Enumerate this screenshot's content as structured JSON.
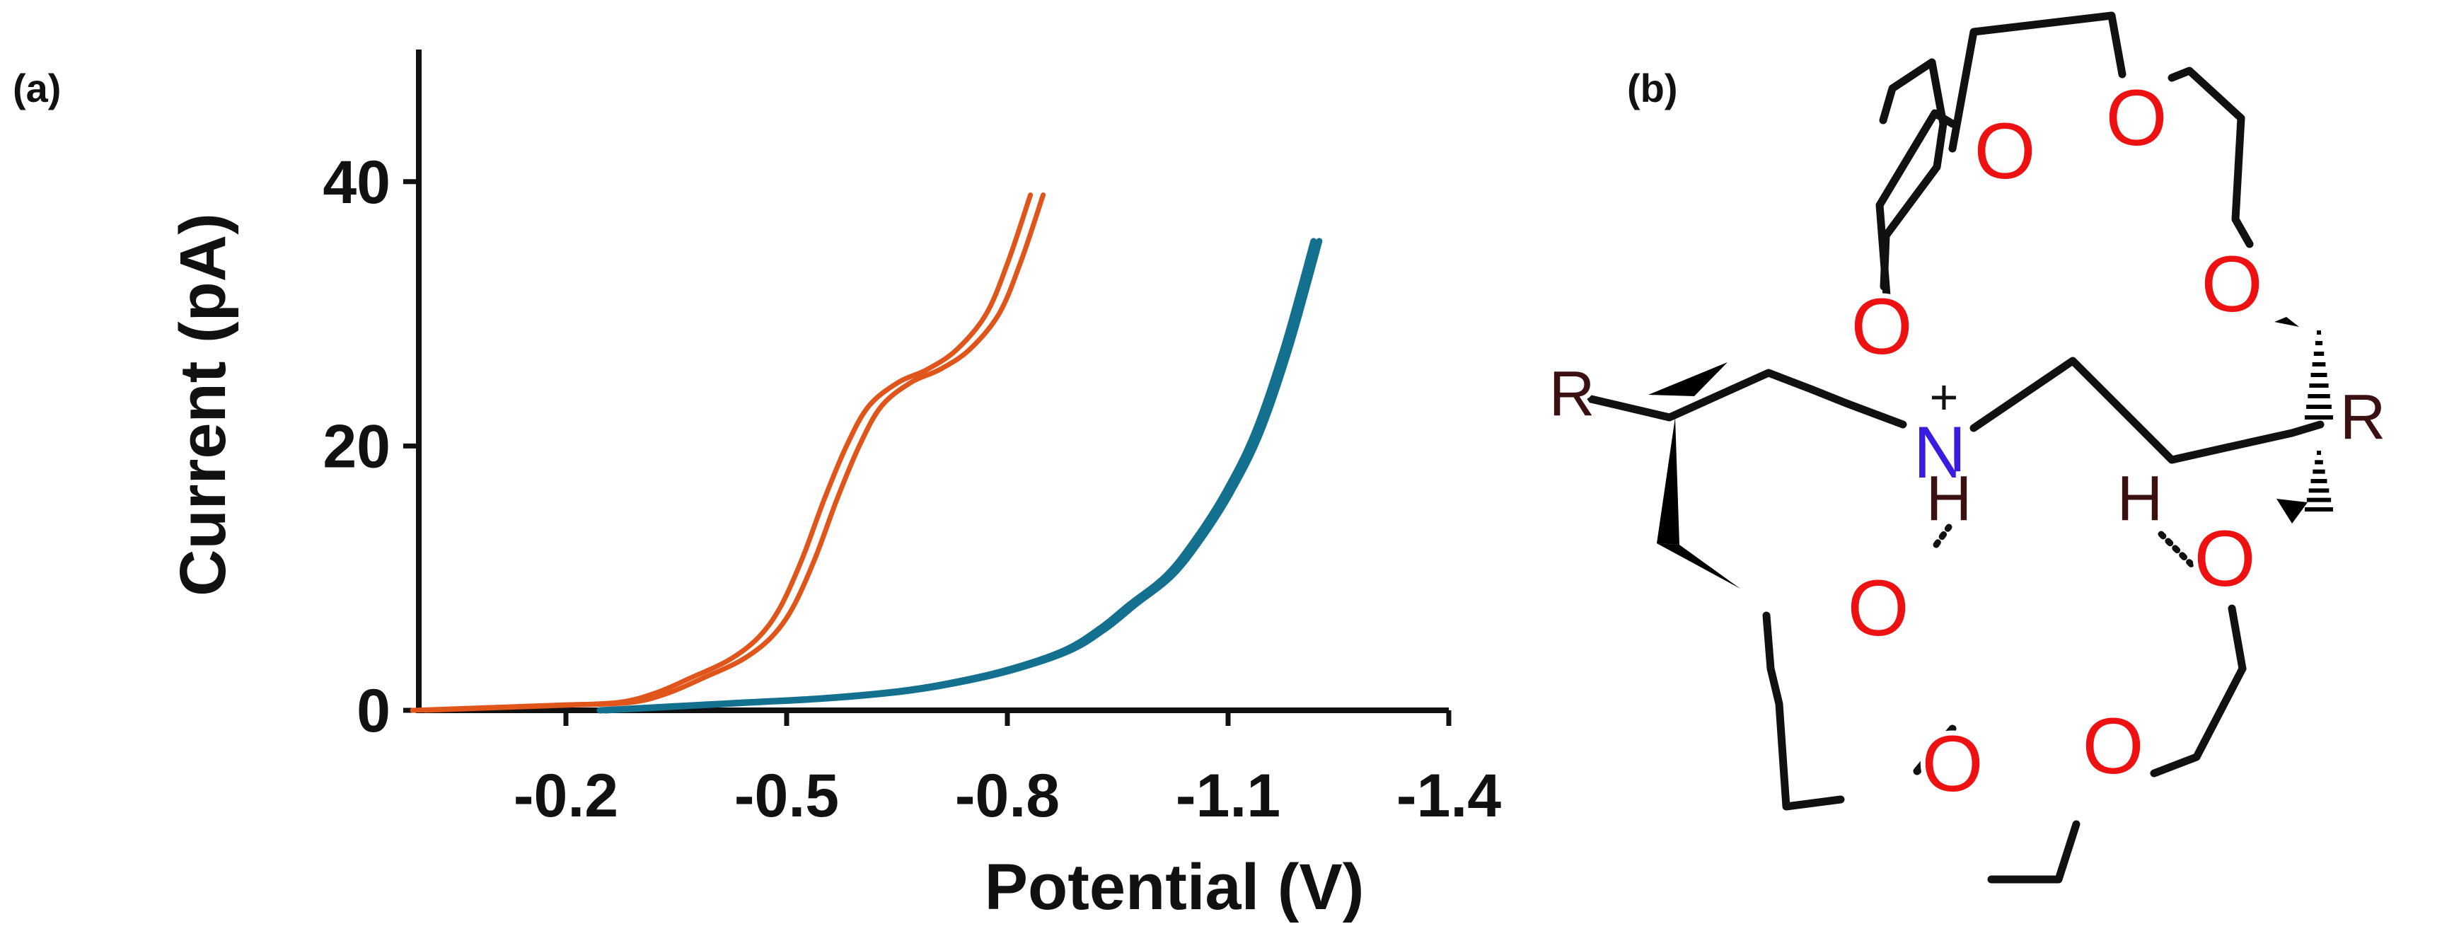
{
  "panel_labels": {
    "a": "(a)",
    "b": "(b)"
  },
  "chart_data": {
    "type": "line",
    "title": "",
    "xlabel": "Potential (V)",
    "ylabel": "Current (pA)",
    "xlim": [
      0.0,
      -1.4
    ],
    "ylim": [
      0,
      50
    ],
    "x_ticks": [
      -0.2,
      -0.5,
      -0.8,
      -1.1,
      -1.4
    ],
    "x_tick_labels": [
      "-0.2",
      "-0.5",
      "-0.8",
      "-1.1",
      "-1.4"
    ],
    "y_ticks": [
      0,
      20,
      40
    ],
    "y_tick_labels": [
      "0",
      "20",
      "40"
    ],
    "series": [
      {
        "name": "orange trace",
        "color": "#e0551a",
        "x": [
          0.0,
          -0.1,
          -0.2,
          -0.28,
          -0.33,
          -0.38,
          -0.43,
          -0.47,
          -0.5,
          -0.53,
          -0.56,
          -0.59,
          -0.62,
          -0.66,
          -0.7,
          -0.74,
          -0.78,
          -0.81,
          -0.84
        ],
        "y": [
          0.0,
          0.2,
          0.4,
          0.6,
          1.3,
          2.5,
          3.8,
          5.5,
          7.8,
          11.5,
          16.0,
          20.0,
          23.0,
          24.8,
          25.8,
          27.3,
          30.0,
          34.0,
          39.0
        ]
      },
      {
        "name": "blue trace",
        "color": "#14708f",
        "x": [
          -0.25,
          -0.35,
          -0.45,
          -0.55,
          -0.65,
          -0.72,
          -0.8,
          -0.88,
          -0.93,
          -0.97,
          -1.02,
          -1.06,
          -1.1,
          -1.14,
          -1.18,
          -1.22
        ],
        "y": [
          0.0,
          0.3,
          0.6,
          0.9,
          1.4,
          2.0,
          3.0,
          4.5,
          6.2,
          8.0,
          10.2,
          13.0,
          16.5,
          21.0,
          27.5,
          35.5
        ]
      }
    ]
  },
  "molecule": {
    "oxygen_label": "O",
    "nitrogen_label": "N",
    "hydrogen_label": "H",
    "charge_label": "+",
    "substituent_label": "R",
    "colors": {
      "oxygen": "#ee1111",
      "nitrogen": "#3a1ce0",
      "bonds": "#111111",
      "h_r": "#3a1010"
    }
  }
}
